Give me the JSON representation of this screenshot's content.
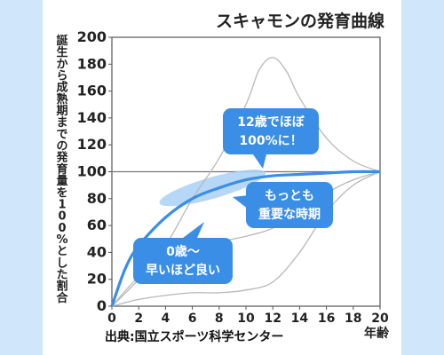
{
  "chart_data": {
    "type": "line",
    "title": "スキャモンの発育曲線",
    "ylabel": "誕生から成熟期までの発育量を100%とした割合",
    "xlabel": "年齢",
    "xlim": [
      0,
      20
    ],
    "ylim": [
      0,
      200
    ],
    "x_ticks": [
      "0",
      "2",
      "4",
      "6",
      "8",
      "10",
      "12",
      "14",
      "16",
      "18",
      "20"
    ],
    "y_ticks": [
      "0",
      "20",
      "40",
      "60",
      "80",
      "100",
      "120",
      "140",
      "160",
      "180",
      "200"
    ],
    "reference_line": 100,
    "series": [
      {
        "role": "highlight",
        "color": "#3a8ee6",
        "x": [
          0,
          1,
          2,
          4,
          6,
          8,
          10,
          12,
          14,
          16,
          18,
          20
        ],
        "y": [
          0,
          28,
          45,
          66,
          80,
          88,
          94,
          97,
          98,
          99,
          100,
          100
        ]
      },
      {
        "role": "background",
        "color": "#b8b8b8",
        "x": [
          0,
          2,
          4,
          6,
          8,
          10,
          11,
          12,
          13,
          14,
          16,
          18,
          20
        ],
        "y": [
          0,
          20,
          45,
          80,
          110,
          150,
          176,
          185,
          175,
          155,
          125,
          108,
          100
        ]
      },
      {
        "role": "background",
        "color": "#b8b8b8",
        "x": [
          0,
          2,
          4,
          6,
          8,
          10,
          12,
          14,
          16,
          18,
          20
        ],
        "y": [
          0,
          22,
          36,
          44,
          48,
          52,
          58,
          70,
          84,
          94,
          100
        ]
      },
      {
        "role": "background",
        "color": "#b8b8b8",
        "x": [
          0,
          2,
          4,
          6,
          8,
          10,
          12,
          14,
          16,
          18,
          20
        ],
        "y": [
          0,
          5,
          8,
          10,
          10,
          12,
          18,
          40,
          70,
          90,
          100
        ]
      }
    ],
    "callouts": [
      {
        "lines": [
          "12歳でほぼ",
          "100%に！"
        ],
        "x": 10.5,
        "y": 100
      },
      {
        "lines": [
          "もっとも",
          "重要な時期"
        ],
        "x": 8,
        "y": 88
      },
      {
        "lines": [
          "0歳～",
          "早いほど良い"
        ],
        "x": 3,
        "y": 72
      }
    ],
    "source": "出典:国立スポーツ科学センター",
    "grid": false
  }
}
